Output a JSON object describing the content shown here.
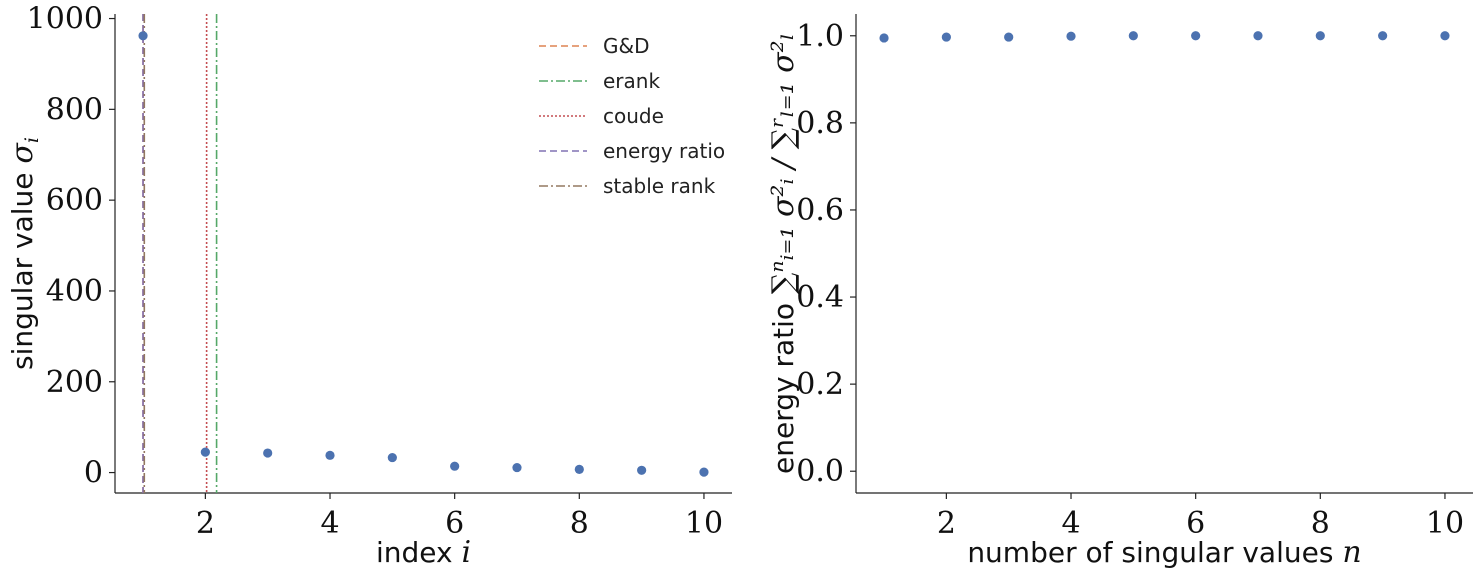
{
  "chart_data": [
    {
      "type": "scatter",
      "xlabel": {
        "text": "index ",
        "math": "i"
      },
      "ylabel": {
        "text": "singular value ",
        "math": "σ",
        "sub": "i"
      },
      "xlim": [
        0.55,
        10.45
      ],
      "ylim": [
        -45,
        1010
      ],
      "xticks": [
        2,
        4,
        6,
        8,
        10
      ],
      "yticks": [
        0,
        200,
        400,
        600,
        800,
        1000
      ],
      "grid": false,
      "legend_position": "top-right",
      "series": [
        {
          "marker_color": "#4c72b0",
          "x": [
            1,
            2,
            3,
            4,
            5,
            6,
            7,
            8,
            9,
            10
          ],
          "y": [
            962,
            45,
            43,
            38,
            33,
            14,
            11,
            7,
            5,
            1
          ]
        }
      ],
      "vlines": [
        {
          "name": "G&D",
          "x": 1.0,
          "color": "#dd8452",
          "style": "dashed"
        },
        {
          "name": "erank",
          "x": 2.18,
          "color": "#55a868",
          "style": "dashdot"
        },
        {
          "name": "coude",
          "x": 2.02,
          "color": "#c44e52",
          "style": "dotted"
        },
        {
          "name": "energy ratio",
          "x": 1.0,
          "color": "#8172b3",
          "style": "dashed"
        },
        {
          "name": "stable rank",
          "x": 1.02,
          "color": "#937860",
          "style": "dashdot"
        }
      ]
    },
    {
      "type": "scatter",
      "xlabel": {
        "text": "number of singular values ",
        "math": "n"
      },
      "ylabel": {
        "text": "energy ratio ",
        "math": "∑ⁿᵢ₌₁ σ²ᵢ / ∑ʳₗ₌₁ σ²ₗ"
      },
      "xlim": [
        0.55,
        10.45
      ],
      "ylim": [
        -0.05,
        1.05
      ],
      "xticks": [
        2,
        4,
        6,
        8,
        10
      ],
      "yticks": [
        "0.0",
        "0.2",
        "0.4",
        "0.6",
        "0.8",
        "1.0"
      ],
      "grid": false,
      "series": [
        {
          "marker_color": "#4c72b0",
          "x": [
            1,
            2,
            3,
            4,
            5,
            6,
            7,
            8,
            9,
            10
          ],
          "y": [
            0.995,
            0.997,
            0.997,
            0.999,
            1.0,
            1.0,
            1.0,
            1.0,
            1.0,
            1.0
          ]
        }
      ]
    }
  ]
}
